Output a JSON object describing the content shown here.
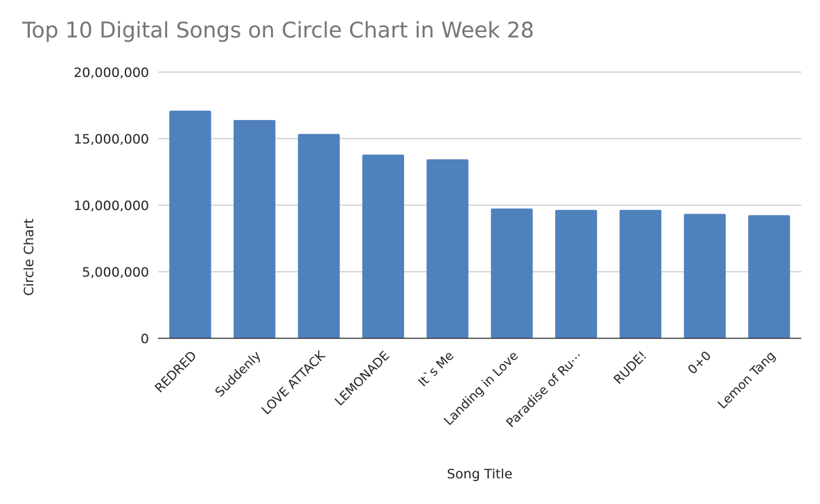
{
  "chart_data": {
    "type": "bar",
    "title": "Top 10 Digital Songs on Circle Chart in Week 28",
    "xlabel": "Song Title",
    "ylabel": "Circle Chart",
    "categories": [
      "REDRED",
      "Suddenly",
      "LOVE ATTACK",
      "LEMONADE",
      "It`s Me",
      "Landing in Love",
      "Paradise of Ru⋯",
      "RUDE!",
      "0+0",
      "Lemon Tang"
    ],
    "series": [
      {
        "values": [
          17100000,
          16400000,
          15350000,
          13800000,
          13450000,
          9750000,
          9650000,
          9650000,
          9350000,
          9250000
        ]
      }
    ],
    "ylim": [
      0,
      20000000
    ],
    "yticks": [
      0,
      5000000,
      10000000,
      15000000,
      20000000
    ],
    "ytick_labels": [
      "0",
      "5,000,000",
      "10,000,000",
      "15,000,000",
      "20,000,000"
    ],
    "grid": true,
    "legend": "none",
    "colors": {
      "bar": "#4f81bd",
      "grid": "#cccccc",
      "axis": "#333333",
      "title": "#757575",
      "text": "#222222"
    }
  }
}
